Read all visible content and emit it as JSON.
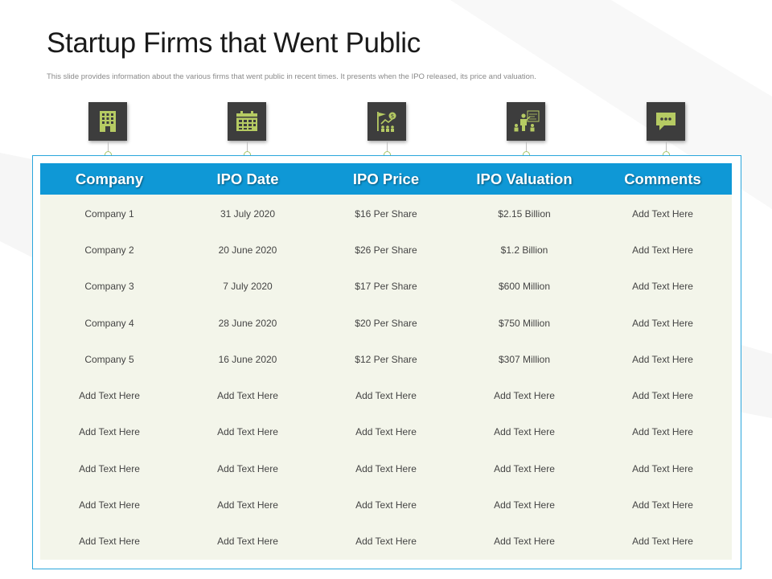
{
  "slide": {
    "title": "Startup Firms that Went Public",
    "subtitle": "This slide provides information about the various firms that went public in recent times. It presents when the IPO  released, its price and valuation."
  },
  "icons": [
    "building-icon",
    "calendar-icon",
    "price-chart-icon",
    "valuation-presentation-icon",
    "chat-bubble-icon"
  ],
  "colors": {
    "header_bg": "#0f98d6",
    "frame_border": "#2aa6dc",
    "table_bg": "#f3f5ea",
    "icon_box": "#3d3d3d",
    "icon_fill": "#b6cb63"
  },
  "table": {
    "headers": [
      "Company",
      "IPO Date",
      "IPO Price",
      "IPO Valuation",
      "Comments"
    ],
    "rows": [
      [
        "Company 1",
        "31 July 2020",
        "$16 Per Share",
        "$2.15 Billion",
        "Add Text Here"
      ],
      [
        "Company 2",
        "20 June 2020",
        "$26 Per Share",
        "$1.2 Billion",
        "Add Text Here"
      ],
      [
        "Company 3",
        "7 July 2020",
        "$17 Per Share",
        "$600 Million",
        "Add Text Here"
      ],
      [
        "Company 4",
        "28 June 2020",
        "$20 Per Share",
        "$750 Million",
        "Add Text Here"
      ],
      [
        "Company 5",
        "16 June 2020",
        "$12 Per Share",
        "$307 Million",
        "Add Text Here"
      ],
      [
        "Add Text Here",
        "Add Text Here",
        "Add Text Here",
        "Add Text Here",
        "Add Text Here"
      ],
      [
        "Add Text Here",
        "Add Text Here",
        "Add Text Here",
        "Add Text Here",
        "Add Text Here"
      ],
      [
        "Add Text Here",
        "Add Text Here",
        "Add Text Here",
        "Add Text Here",
        "Add Text Here"
      ],
      [
        "Add Text Here",
        "Add Text Here",
        "Add Text Here",
        "Add Text Here",
        "Add Text Here"
      ],
      [
        "Add Text Here",
        "Add Text Here",
        "Add Text Here",
        "Add Text Here",
        "Add Text Here"
      ]
    ]
  }
}
